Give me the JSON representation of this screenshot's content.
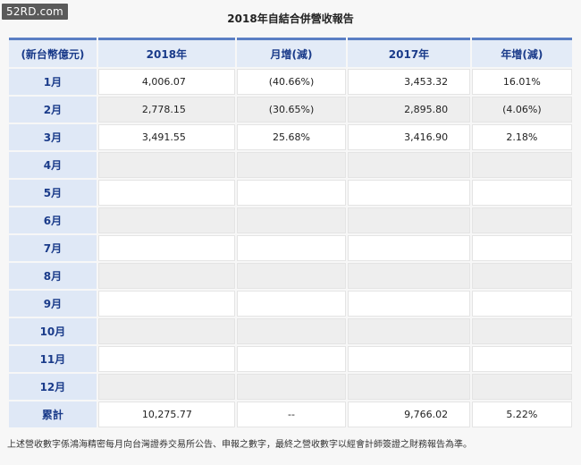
{
  "watermark": "52RD.com",
  "title": "2018年自結合併營收報告",
  "headers": [
    "(新台幣億元)",
    "2018年",
    "月增(減)",
    "2017年",
    "年增(減)"
  ],
  "rows": [
    {
      "label": "1月",
      "v2018": "4,006.07",
      "mom": "(40.66%)",
      "v2017": "3,453.32",
      "yoy": "16.01%"
    },
    {
      "label": "2月",
      "v2018": "2,778.15",
      "mom": "(30.65%)",
      "v2017": "2,895.80",
      "yoy": "(4.06%)"
    },
    {
      "label": "3月",
      "v2018": "3,491.55",
      "mom": "25.68%",
      "v2017": "3,416.90",
      "yoy": "2.18%"
    },
    {
      "label": "4月",
      "v2018": "",
      "mom": "",
      "v2017": "",
      "yoy": ""
    },
    {
      "label": "5月",
      "v2018": "",
      "mom": "",
      "v2017": "",
      "yoy": ""
    },
    {
      "label": "6月",
      "v2018": "",
      "mom": "",
      "v2017": "",
      "yoy": ""
    },
    {
      "label": "7月",
      "v2018": "",
      "mom": "",
      "v2017": "",
      "yoy": ""
    },
    {
      "label": "8月",
      "v2018": "",
      "mom": "",
      "v2017": "",
      "yoy": ""
    },
    {
      "label": "9月",
      "v2018": "",
      "mom": "",
      "v2017": "",
      "yoy": ""
    },
    {
      "label": "10月",
      "v2018": "",
      "mom": "",
      "v2017": "",
      "yoy": ""
    },
    {
      "label": "11月",
      "v2018": "",
      "mom": "",
      "v2017": "",
      "yoy": ""
    },
    {
      "label": "12月",
      "v2018": "",
      "mom": "",
      "v2017": "",
      "yoy": ""
    },
    {
      "label": "累計",
      "v2018": "10,275.77",
      "mom": "--",
      "v2017": "9,766.02",
      "yoy": "5.22%"
    }
  ],
  "footnote": "上述營收數字係鴻海精密每月向台灣證券交易所公告、申報之數字，最終之營收數字以經會計師簽證之財務報告為準。",
  "colors": {
    "accent": "#5b7fc4",
    "header_bg": "#e3ebf7",
    "label_text": "#1a3b8a"
  }
}
